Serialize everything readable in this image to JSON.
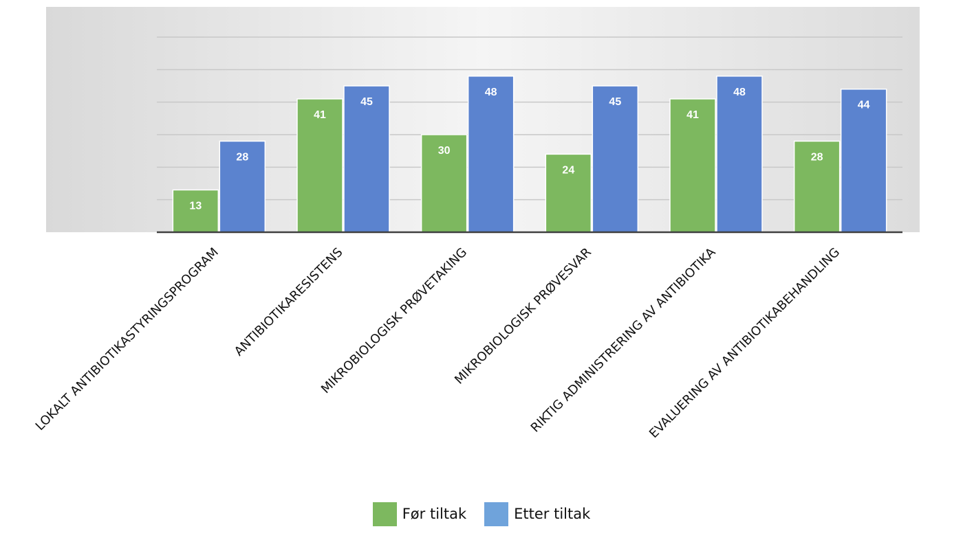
{
  "chart_data": {
    "type": "bar",
    "title": "",
    "xlabel": "",
    "ylabel": "",
    "categories": [
      "LOKALT ANTIBIOTIKASTYRINGSPROGRAM",
      "ANTIBIOTIKARESISTENS",
      "MIKROBIOLOGISK PRØVETAKING",
      "MIKROBIOLOGISK PRØVESVAR",
      "RIKTIG ADMINISTRERING AV ANTIBIOTIKA",
      "EVALUERING AV ANTIBIOTIKABEHANDLING"
    ],
    "series": [
      {
        "name": "Før tiltak",
        "color": "#7DB85F",
        "values": [
          13,
          41,
          30,
          24,
          41,
          28
        ]
      },
      {
        "name": "Etter tiltak",
        "color": "#5B83CF",
        "values": [
          28,
          45,
          48,
          45,
          48,
          44
        ]
      }
    ],
    "ylim": [
      0,
      60
    ],
    "gridlines": true,
    "y_tick_labels": false,
    "data_labels": true,
    "legend": "bottom-center"
  },
  "legend": {
    "items": [
      {
        "label": "Før tiltak",
        "color": "#7DB85F"
      },
      {
        "label": "Etter tiltak",
        "color": "#6FA3DB"
      }
    ]
  }
}
